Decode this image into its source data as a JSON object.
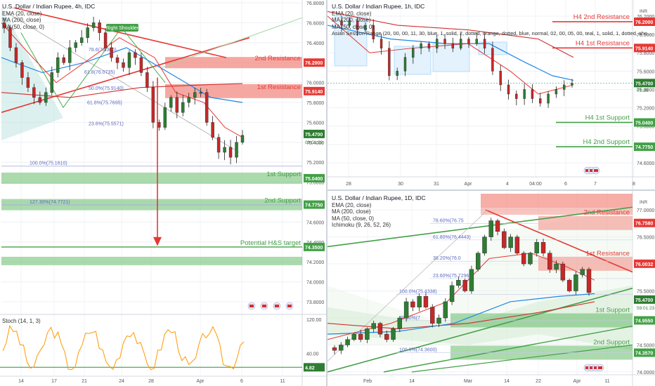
{
  "colors": {
    "up": "#26a69a",
    "down": "#ef5350",
    "bull": "#2e7d32",
    "bear": "#c62828",
    "resistance_zone": "#f28b82",
    "support_zone": "#66bb6a",
    "level_red": "#e53935",
    "level_green": "#43a047",
    "ema": "#e53935",
    "ma200": "#d32f2f",
    "ma50": "#1e88e5",
    "fib": "#5c6bc0",
    "stoch": "#ff9800",
    "price_tag": "#2e7d32"
  },
  "panel_4h": {
    "title": "U.S. Dollar / Indian Rupee, 4h, IDC",
    "legend": [
      "EMA (20, close)",
      "MA (200, close)",
      "MA (50, close, 0)"
    ],
    "pattern_label": "Right Shoulder",
    "y_ticks": [
      "76.8000",
      "76.6000",
      "76.4000",
      "76.2000",
      "76.0000",
      "75.8000",
      "75.6000",
      "75.4000",
      "75.2000",
      "75.0000",
      "74.8000",
      "74.6000",
      "74.4000",
      "74.2000",
      "74.0000",
      "73.8000"
    ],
    "x_ticks": [
      "14",
      "17",
      "21",
      "24",
      "28",
      "Apr",
      "6",
      "11"
    ],
    "levels": [
      {
        "name": "2nd Resistance",
        "value": "76.2000",
        "kind": "res"
      },
      {
        "name": "1st Resistance",
        "value": "75.9140",
        "kind": "res"
      },
      {
        "name": "1st Support",
        "value": "75.0400",
        "kind": "sup"
      },
      {
        "name": "2nd Support",
        "value": "74.7750",
        "kind": "sup"
      },
      {
        "name": "Potential H&S target",
        "value": "74.3500",
        "kind": "sup"
      }
    ],
    "fibs": [
      {
        "label": "78.6",
        "text": "78.6(76.300)"
      },
      {
        "label": "61.8",
        "text": "61.8(76.0735)"
      },
      {
        "label": "50.0",
        "text": "50.0%(75.9140)"
      },
      {
        "label": "61.8b",
        "text": "61.8%(75.7695)"
      },
      {
        "label": "23.6",
        "text": "23.6%(75.5571)"
      },
      {
        "label": "100",
        "text": "100.0%(75.1610)"
      },
      {
        "label": "127",
        "text": "127.30%(74.7721)"
      }
    ],
    "price_tag": "75.4700",
    "countdown": "03:01:28",
    "stoch_title": "Stoch (14, 1, 3)",
    "stoch_ticks": [
      "120.00",
      "40.00"
    ],
    "stoch_tag": "4.82"
  },
  "panel_1h": {
    "title": "U.S. Dollar / Indian Rupee, 1h, IDC",
    "legend": [
      "EMA (20, close)",
      "MA (200, close)",
      "MA (50, close, 0)",
      "Asian Session Range (20, 00, 00, 11, 30, blue, 1, solid, 2, dotted, orange, dotted, blue, normal, 02, 00, 05, 00, teal, 1, solid, 1, dotted, sho..."
    ],
    "y_ticks": [
      "76.2000",
      "76.0000",
      "75.8000",
      "75.6000",
      "75.4000",
      "75.2000",
      "75.0000",
      "74.8000",
      "74.6000"
    ],
    "x_ticks": [
      "28",
      "30",
      "31",
      "Apr",
      "4",
      "04:00",
      "6",
      "7",
      "8"
    ],
    "levels": [
      {
        "name": "H4 2nd Resistance",
        "value": "76.2000",
        "kind": "res"
      },
      {
        "name": "H4 1st Resistance",
        "value": "75.9140",
        "kind": "res"
      },
      {
        "name": "H4 1st Support",
        "value": "75.0400",
        "kind": "sup"
      },
      {
        "name": "H4 2nd Support",
        "value": "74.7750",
        "kind": "sup"
      }
    ],
    "price_tag": "75.4700",
    "countdown": "01:28",
    "currency_badge": "INR"
  },
  "panel_1d": {
    "title": "U.S. Dollar / Indian Rupee, 1D, IDC",
    "legend": [
      "EMA (20, close)",
      "MA (200, close)",
      "MA (50, close, 0)",
      "Ichimoku (9, 26, 52, 26)"
    ],
    "y_ticks": [
      "77.0000",
      "76.5000",
      "76.0000",
      "75.5000",
      "75.0000",
      "74.5000",
      "74.0000"
    ],
    "x_ticks": [
      "Feb",
      "14",
      "Mar",
      "14",
      "22",
      "Apr",
      "11"
    ],
    "levels": [
      {
        "name": "2nd Resistance",
        "value": "76.7580",
        "kind": "res"
      },
      {
        "name": "1st Resistance",
        "value": "76.0032",
        "kind": "res"
      },
      {
        "name": "1st Support",
        "value": "74.9550",
        "kind": "sup"
      },
      {
        "name": "2nd Support",
        "value": "74.3570",
        "kind": "sup"
      }
    ],
    "fibs": [
      {
        "label": "78.6",
        "text": "78.60%(76.75"
      },
      {
        "label": "61.8",
        "text": "61.80%(76.4443)"
      },
      {
        "label": "38.2",
        "text": "38.20%(76.0"
      },
      {
        "label": "23.6",
        "text": "23.60%(75.7296)"
      },
      {
        "label": "0.0",
        "text": "100.0%(75.4338)"
      },
      {
        "label": "78.6b",
        "text": "78.60%(7"
      },
      {
        "label": "100",
        "text": "100.0%(74.3600)"
      }
    ],
    "price_tag": "75.4700",
    "countdown": "59:01:23",
    "currency_badge": "INR"
  },
  "chart_data": [
    {
      "type": "candlestick",
      "title": "U.S. Dollar / Indian Rupee, 4h, IDC",
      "ylim": [
        73.8,
        76.8
      ],
      "x_ticks": [
        "14",
        "17",
        "21",
        "24",
        "28",
        "Apr",
        "6",
        "11"
      ],
      "closes": [
        76.55,
        76.35,
        76.2,
        76.05,
        75.95,
        75.85,
        75.8,
        75.9,
        76.1,
        76.25,
        76.2,
        76.35,
        76.4,
        76.45,
        76.55,
        76.6,
        76.5,
        76.35,
        76.25,
        76.2,
        76.15,
        76.3,
        76.25,
        76.1,
        75.95,
        75.6,
        75.55,
        75.75,
        75.85,
        75.7,
        75.8,
        75.85,
        75.9,
        75.9,
        75.6,
        75.45,
        75.3,
        75.35,
        75.25,
        75.4,
        75.47
      ],
      "levels": {
        "2nd Resistance": 76.2,
        "1st Resistance": 75.914,
        "1st Support": 75.04,
        "2nd Support": 74.775,
        "Potential H&S target": 74.35
      },
      "stochastic_last": 4.82
    },
    {
      "type": "candlestick",
      "title": "U.S. Dollar / Indian Rupee, 1h, IDC",
      "ylim": [
        74.6,
        76.3
      ],
      "x_ticks": [
        "28",
        "30",
        "31",
        "Apr",
        "4",
        "04:00",
        "6",
        "7",
        "8"
      ],
      "closes": [
        76.1,
        76.15,
        76.05,
        76.1,
        75.95,
        75.85,
        75.55,
        75.6,
        75.75,
        75.85,
        75.9,
        75.85,
        75.95,
        75.9,
        75.85,
        75.95,
        75.9,
        75.95,
        75.85,
        75.6,
        75.45,
        75.35,
        75.3,
        75.4,
        75.3,
        75.25,
        75.35,
        75.4,
        75.45,
        75.47
      ],
      "levels": {
        "H4 2nd Resistance": 76.2,
        "H4 1st Resistance": 75.914,
        "H4 1st Support": 75.04,
        "H4 2nd Support": 74.775
      }
    },
    {
      "type": "candlestick",
      "title": "U.S. Dollar / Indian Rupee, 1D, IDC",
      "ylim": [
        74.0,
        77.3
      ],
      "x_ticks": [
        "Feb",
        "14",
        "Mar",
        "14",
        "22",
        "Apr",
        "11"
      ],
      "closes": [
        74.4,
        74.5,
        74.6,
        74.7,
        74.6,
        74.8,
        74.9,
        74.7,
        74.6,
        74.8,
        75.0,
        75.3,
        75.2,
        75.4,
        75.2,
        74.9,
        75.0,
        75.3,
        75.6,
        75.7,
        75.5,
        75.9,
        76.2,
        76.5,
        76.8,
        76.6,
        76.3,
        76.5,
        76.2,
        76.0,
        76.2,
        76.4,
        76.2,
        75.9,
        76.0,
        75.7,
        75.5,
        75.8,
        75.9,
        75.47
      ],
      "levels": {
        "2nd Resistance": 76.758,
        "1st Resistance": 76.0032,
        "1st Support": 74.955,
        "2nd Support": 74.357
      }
    }
  ]
}
